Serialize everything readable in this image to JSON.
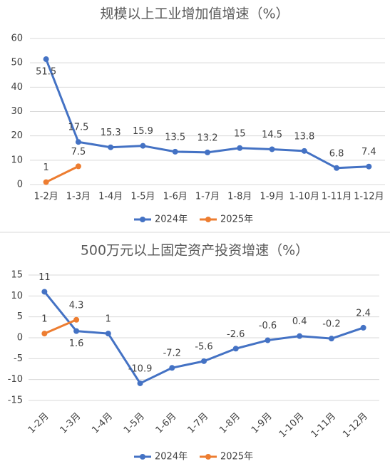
{
  "chart_data": [
    {
      "type": "line",
      "title": "规模以上工业增加值增速（%）",
      "categories": [
        "1-2月",
        "1-3月",
        "1-4月",
        "1-5月",
        "1-6月",
        "1-7月",
        "1-8月",
        "1-9月",
        "1-10月",
        "1-11月",
        "1-12月"
      ],
      "series": [
        {
          "name": "2024年",
          "color": "#4472c4",
          "values": [
            51.5,
            17.5,
            15.3,
            15.9,
            13.5,
            13.2,
            15,
            14.5,
            13.8,
            6.8,
            7.4
          ]
        },
        {
          "name": "2025年",
          "color": "#ed7d31",
          "values": [
            1,
            7.5,
            null,
            null,
            null,
            null,
            null,
            null,
            null,
            null,
            null
          ]
        }
      ],
      "ylim": [
        0,
        60
      ],
      "yticks": [
        0,
        10,
        20,
        30,
        40,
        50,
        60
      ],
      "grid": true,
      "legend": "bottom"
    },
    {
      "type": "line",
      "title": "500万元以上固定资产投资增速（%）",
      "categories": [
        "1-2月",
        "1-3月",
        "1-4月",
        "1-5月",
        "1-6月",
        "1-7月",
        "1-8月",
        "1-9月",
        "1-10月",
        "1-11月",
        "1-12月"
      ],
      "series": [
        {
          "name": "2024年",
          "color": "#4472c4",
          "values": [
            11,
            1.6,
            1,
            -10.9,
            -7.2,
            -5.6,
            -2.6,
            -0.6,
            0.4,
            -0.2,
            2.4
          ]
        },
        {
          "name": "2025年",
          "color": "#ed7d31",
          "values": [
            1,
            4.3,
            null,
            null,
            null,
            null,
            null,
            null,
            null,
            null,
            null
          ]
        }
      ],
      "ylim": [
        -15,
        15
      ],
      "yticks": [
        -15,
        -10,
        -5,
        0,
        5,
        10,
        15
      ],
      "grid": true,
      "legend": "bottom"
    }
  ]
}
